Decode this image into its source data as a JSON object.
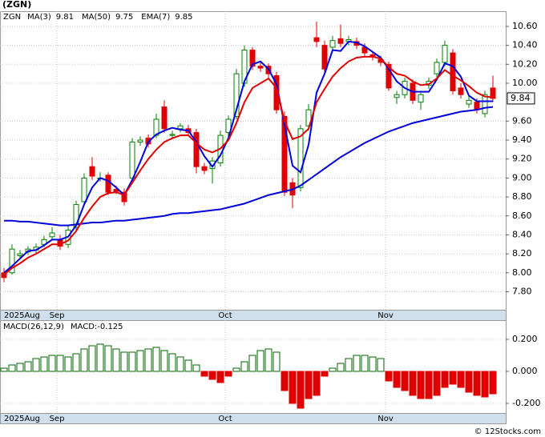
{
  "chart_data": [
    {
      "type": "candlestick",
      "title": "(ZGN)",
      "symbol": "ZGN",
      "categories": [
        "2025Aug",
        null,
        null,
        null,
        null,
        null,
        null,
        "Sep",
        null,
        null,
        null,
        null,
        null,
        null,
        null,
        null,
        null,
        null,
        null,
        null,
        null,
        null,
        null,
        null,
        null,
        null,
        null,
        null,
        "Oct",
        null,
        null,
        null,
        null,
        null,
        null,
        null,
        null,
        null,
        null,
        null,
        null,
        null,
        null,
        null,
        null,
        null,
        null,
        null,
        "Nov",
        null,
        null,
        null,
        null,
        null,
        null,
        null,
        null,
        null,
        null,
        null,
        null,
        null
      ],
      "open": [
        8.0,
        8.0,
        8.18,
        8.22,
        8.24,
        8.3,
        8.38,
        8.35,
        8.3,
        8.48,
        8.75,
        9.12,
        9.0,
        9.03,
        8.88,
        8.85,
        9.0,
        9.38,
        9.42,
        9.45,
        9.75,
        9.45,
        9.52,
        9.52,
        9.48,
        9.12,
        9.1,
        9.16,
        9.48,
        9.65,
        10.0,
        10.35,
        10.18,
        10.18,
        10.08,
        9.65,
        8.95,
        8.9,
        9.55,
        10.48,
        10.4,
        10.38,
        10.47,
        10.44,
        10.44,
        10.38,
        10.3,
        10.25,
        10.2,
        9.85,
        9.88,
        10.0,
        9.8,
        9.98,
        10.1,
        10.22,
        10.32,
        9.95,
        9.78,
        9.8,
        9.68,
        9.95
      ],
      "high": [
        8.05,
        8.3,
        8.24,
        8.28,
        8.31,
        8.39,
        8.48,
        8.4,
        8.5,
        8.76,
        9.05,
        9.22,
        9.06,
        9.06,
        8.92,
        8.89,
        9.42,
        9.44,
        9.46,
        9.68,
        9.82,
        9.5,
        9.58,
        9.56,
        9.52,
        9.16,
        9.22,
        9.5,
        9.66,
        10.15,
        10.4,
        10.38,
        10.22,
        10.21,
        10.12,
        9.7,
        9.0,
        9.56,
        9.78,
        10.65,
        10.45,
        10.5,
        10.62,
        10.5,
        10.48,
        10.42,
        10.34,
        10.29,
        10.23,
        9.92,
        10.06,
        10.04,
        9.9,
        10.06,
        10.26,
        10.45,
        10.36,
        10.0,
        9.88,
        9.84,
        9.92,
        10.08
      ],
      "low": [
        7.9,
        7.98,
        8.14,
        8.19,
        8.21,
        8.27,
        8.35,
        8.24,
        8.26,
        8.45,
        8.72,
        8.98,
        8.96,
        8.82,
        8.83,
        8.71,
        8.97,
        9.34,
        9.32,
        9.42,
        9.48,
        9.41,
        9.48,
        9.45,
        9.05,
        9.04,
        8.94,
        9.12,
        9.44,
        9.62,
        9.96,
        10.14,
        10.12,
        10.06,
        9.68,
        8.81,
        8.68,
        8.86,
        9.5,
        10.38,
        10.1,
        10.34,
        10.38,
        10.4,
        10.36,
        10.28,
        10.24,
        10.18,
        9.92,
        9.78,
        9.84,
        9.78,
        9.72,
        9.94,
        10.06,
        10.18,
        9.88,
        9.84,
        9.74,
        9.68,
        9.64,
        9.8
      ],
      "close": [
        7.95,
        8.25,
        8.2,
        8.25,
        8.27,
        8.35,
        8.42,
        8.28,
        8.45,
        8.72,
        9.0,
        9.02,
        9.0,
        8.85,
        8.86,
        8.75,
        9.38,
        9.4,
        9.36,
        9.62,
        9.52,
        9.46,
        9.55,
        9.48,
        9.12,
        9.08,
        9.18,
        9.45,
        9.62,
        10.1,
        10.35,
        10.18,
        10.16,
        10.1,
        9.72,
        8.85,
        8.82,
        9.52,
        9.72,
        10.44,
        10.15,
        10.45,
        10.42,
        10.46,
        10.4,
        10.32,
        10.28,
        10.22,
        9.95,
        9.88,
        10.02,
        9.82,
        9.88,
        10.02,
        10.22,
        10.4,
        9.92,
        9.88,
        9.82,
        9.72,
        9.88,
        9.84
      ],
      "up_color": "#008000",
      "down_color": "#e00000",
      "series": [
        {
          "name": "MA(3)",
          "last": 9.81,
          "color": "#0000dd",
          "values": [
            8.0,
            8.07,
            8.15,
            8.23,
            8.24,
            8.29,
            8.35,
            8.35,
            8.38,
            8.5,
            8.72,
            8.9,
            9.0,
            8.97,
            8.9,
            8.82,
            8.98,
            9.17,
            9.38,
            9.46,
            9.5,
            9.53,
            9.51,
            9.5,
            9.38,
            9.23,
            9.12,
            9.24,
            9.42,
            9.72,
            10.02,
            10.2,
            10.23,
            10.15,
            9.99,
            9.56,
            9.13,
            9.06,
            9.35,
            9.9,
            10.1,
            10.35,
            10.34,
            10.44,
            10.43,
            10.39,
            10.33,
            10.27,
            10.15,
            10.02,
            9.95,
            9.91,
            9.91,
            9.91,
            10.04,
            10.21,
            10.18,
            10.07,
            9.87,
            9.81,
            9.81,
            9.81
          ]
        },
        {
          "name": "MA(50)",
          "last": 9.75,
          "color": "#0000dd",
          "values": [
            8.55,
            8.55,
            8.54,
            8.54,
            8.53,
            8.52,
            8.51,
            8.5,
            8.5,
            8.51,
            8.52,
            8.53,
            8.53,
            8.54,
            8.55,
            8.55,
            8.56,
            8.57,
            8.58,
            8.59,
            8.6,
            8.62,
            8.63,
            8.63,
            8.64,
            8.65,
            8.66,
            8.67,
            8.69,
            8.71,
            8.73,
            8.76,
            8.79,
            8.82,
            8.84,
            8.86,
            8.88,
            8.92,
            8.98,
            9.04,
            9.1,
            9.16,
            9.22,
            9.27,
            9.32,
            9.37,
            9.41,
            9.45,
            9.49,
            9.52,
            9.55,
            9.58,
            9.6,
            9.62,
            9.64,
            9.66,
            9.68,
            9.7,
            9.71,
            9.72,
            9.74,
            9.75
          ]
        },
        {
          "name": "EMA(7)",
          "last": 9.85,
          "color": "#e00000",
          "values": [
            7.98,
            8.05,
            8.1,
            8.16,
            8.2,
            8.25,
            8.3,
            8.3,
            8.34,
            8.44,
            8.58,
            8.7,
            8.8,
            8.84,
            8.85,
            8.82,
            8.95,
            9.08,
            9.2,
            9.3,
            9.38,
            9.42,
            9.45,
            9.45,
            9.37,
            9.3,
            9.27,
            9.31,
            9.4,
            9.58,
            9.8,
            9.95,
            10.0,
            10.05,
            9.95,
            9.6,
            9.41,
            9.44,
            9.52,
            9.8,
            9.94,
            10.07,
            10.16,
            10.23,
            10.27,
            10.28,
            10.28,
            10.26,
            10.17,
            10.1,
            10.08,
            10.02,
            9.98,
            9.99,
            10.05,
            10.14,
            10.08,
            10.03,
            9.97,
            9.9,
            9.86,
            9.85
          ]
        }
      ],
      "ylim": [
        7.61,
        10.76
      ],
      "yticks": [
        {
          "value": 7.8,
          "label": "7.80"
        },
        {
          "value": 8,
          "label": "8.00"
        },
        {
          "value": 8.2,
          "label": "8.20"
        },
        {
          "value": 8.4,
          "label": "8.40"
        },
        {
          "value": 8.6,
          "label": "8.60"
        },
        {
          "value": 8.8,
          "label": "8.80"
        },
        {
          "value": 9,
          "label": "9.00"
        },
        {
          "value": 9.2,
          "label": "9.20"
        },
        {
          "value": 9.4,
          "label": "9.40"
        },
        {
          "value": 9.6,
          "label": "9.60"
        },
        {
          "value": 10,
          "label": "10.00"
        },
        {
          "value": 10.2,
          "label": "10.20"
        },
        {
          "value": 10.4,
          "label": "10.40"
        },
        {
          "value": 10.6,
          "label": "10.60"
        }
      ],
      "grid": true
    },
    {
      "type": "bar",
      "title": "MACD(26,12,9)",
      "value_text": "MACD:-0.125",
      "values": [
        0.02,
        0.04,
        0.05,
        0.06,
        0.08,
        0.09,
        0.1,
        0.1,
        0.09,
        0.11,
        0.14,
        0.16,
        0.17,
        0.16,
        0.14,
        0.12,
        0.12,
        0.13,
        0.14,
        0.15,
        0.13,
        0.11,
        0.09,
        0.07,
        0.04,
        -0.03,
        -0.05,
        -0.07,
        -0.03,
        0.02,
        0.06,
        0.1,
        0.13,
        0.14,
        0.12,
        -0.12,
        -0.2,
        -0.23,
        -0.17,
        -0.15,
        -0.03,
        0.02,
        0.05,
        0.08,
        0.1,
        0.1,
        0.09,
        0.08,
        -0.06,
        -0.1,
        -0.12,
        -0.15,
        -0.17,
        -0.17,
        -0.15,
        -0.1,
        -0.08,
        -0.1,
        -0.13,
        -0.15,
        -0.16,
        -0.14
      ],
      "up_color": "#006400",
      "down_color": "#e00000",
      "ylim": [
        -0.26,
        0.32
      ],
      "yticks": [
        {
          "value": -0.2,
          "label": "-0.200"
        },
        {
          "value": 0,
          "label": "0.000"
        },
        {
          "value": 0.2,
          "label": "0.200"
        }
      ],
      "grid": true
    }
  ],
  "footer": "© 12Stocks.com"
}
